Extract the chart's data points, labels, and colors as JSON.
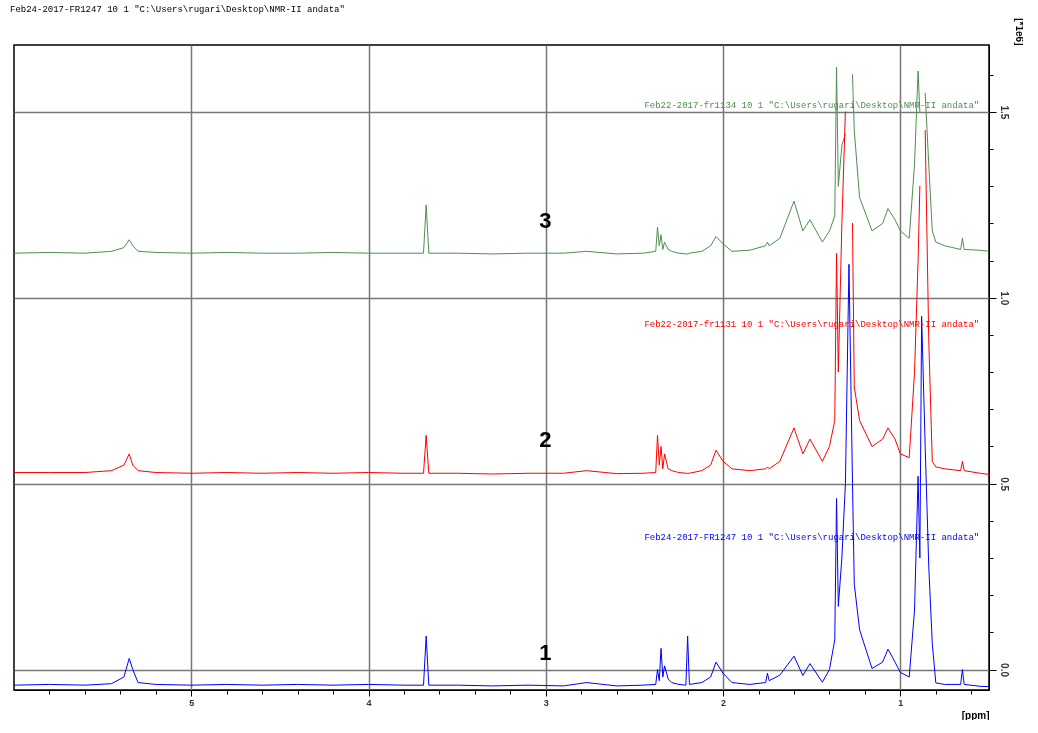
{
  "chart_data": {
    "type": "line",
    "title": "Feb24-2017-FR1247  10  1  \"C:\\Users\\rugari\\Desktop\\NMR-II andata\"",
    "xlabel": "[ppm]",
    "ylabel": "[*1e6]",
    "x": [
      6.0,
      5.8,
      5.6,
      5.45,
      5.38,
      5.35,
      5.33,
      5.3,
      5.2,
      5.0,
      4.8,
      4.6,
      4.4,
      4.2,
      4.0,
      3.8,
      3.69,
      3.675,
      3.66,
      3.5,
      3.3,
      3.1,
      2.9,
      2.77,
      2.6,
      2.45,
      2.38,
      2.37,
      2.36,
      2.35,
      2.34,
      2.33,
      2.31,
      2.29,
      2.25,
      2.21,
      2.2,
      2.19,
      2.12,
      2.07,
      2.04,
      2.0,
      1.95,
      1.85,
      1.76,
      1.75,
      1.74,
      1.68,
      1.6,
      1.55,
      1.51,
      1.44,
      1.4,
      1.37,
      1.36,
      1.35,
      1.33,
      1.31,
      1.29,
      1.27,
      1.26,
      1.23,
      1.16,
      1.1,
      1.07,
      1.03,
      1.0,
      0.95,
      0.92,
      0.9,
      0.89,
      0.88,
      0.86,
      0.84,
      0.82,
      0.8,
      0.75,
      0.66,
      0.65,
      0.64,
      0.55,
      0.5
    ],
    "series": [
      {
        "name": "Feb22-2017-fr1134  10  1  \"C:\\Users\\rugari\\Desktop\\NMR-II andata\"",
        "color": "#4f8f4f",
        "values": [
          1.12,
          1.122,
          1.12,
          1.125,
          1.135,
          1.156,
          1.14,
          1.125,
          1.122,
          1.12,
          1.122,
          1.12,
          1.12,
          1.122,
          1.12,
          1.12,
          1.12,
          1.25,
          1.12,
          1.12,
          1.118,
          1.12,
          1.12,
          1.125,
          1.118,
          1.12,
          1.125,
          1.19,
          1.14,
          1.17,
          1.13,
          1.15,
          1.13,
          1.125,
          1.12,
          1.118,
          1.118,
          1.12,
          1.125,
          1.14,
          1.165,
          1.145,
          1.125,
          1.128,
          1.14,
          1.15,
          1.14,
          1.16,
          1.26,
          1.18,
          1.21,
          1.15,
          1.18,
          1.22,
          1.62,
          1.3,
          1.41,
          1.44,
          null,
          1.6,
          1.45,
          1.27,
          1.18,
          1.2,
          1.24,
          1.21,
          1.18,
          1.16,
          1.36,
          1.61,
          1.5,
          null,
          1.55,
          1.36,
          1.18,
          1.15,
          1.14,
          1.13,
          1.16,
          1.13,
          1.128,
          1.125
        ]
      },
      {
        "name": "Feb22-2017-fr1131  10  1  \"C:\\Users\\rugari\\Desktop\\NMR-II andata\"",
        "color": "#ff0000",
        "values": [
          0.53,
          0.53,
          0.53,
          0.535,
          0.55,
          0.58,
          0.55,
          0.535,
          0.53,
          0.528,
          0.53,
          0.528,
          0.53,
          0.528,
          0.53,
          0.528,
          0.528,
          0.63,
          0.528,
          0.528,
          0.526,
          0.528,
          0.528,
          0.535,
          0.527,
          0.528,
          0.53,
          0.63,
          0.55,
          0.6,
          0.54,
          0.58,
          0.54,
          0.535,
          0.53,
          0.528,
          0.528,
          0.528,
          0.535,
          0.55,
          0.59,
          0.56,
          0.54,
          0.535,
          0.54,
          0.545,
          0.54,
          0.56,
          0.65,
          0.58,
          0.62,
          0.56,
          0.6,
          0.67,
          1.12,
          0.8,
          1.2,
          1.5,
          null,
          1.2,
          0.76,
          0.67,
          0.6,
          0.62,
          0.65,
          0.62,
          0.58,
          0.57,
          0.8,
          1.1,
          1.3,
          null,
          1.45,
          0.89,
          0.56,
          0.545,
          0.54,
          0.535,
          0.56,
          0.535,
          0.528,
          0.525
        ]
      },
      {
        "name": "Feb24-2017-FR1247  10  1  \"C:\\Users\\rugari\\Desktop\\NMR-II andata\"",
        "color": "#0000ff",
        "values": [
          -0.042,
          -0.04,
          -0.042,
          -0.038,
          -0.02,
          0.03,
          0.0,
          -0.035,
          -0.04,
          -0.042,
          -0.04,
          -0.042,
          -0.04,
          -0.042,
          -0.04,
          -0.042,
          -0.042,
          0.09,
          -0.042,
          -0.042,
          -0.044,
          -0.042,
          -0.044,
          -0.035,
          -0.044,
          -0.042,
          -0.04,
          0.0,
          -0.03,
          0.057,
          -0.02,
          0.01,
          -0.025,
          -0.035,
          -0.04,
          -0.042,
          0.09,
          -0.04,
          -0.035,
          -0.02,
          0.02,
          -0.01,
          -0.035,
          -0.04,
          -0.035,
          -0.01,
          -0.03,
          -0.015,
          0.036,
          -0.016,
          0.016,
          -0.034,
          0.0,
          0.08,
          0.46,
          0.17,
          0.3,
          0.5,
          1.09,
          0.5,
          0.23,
          0.107,
          0.003,
          0.02,
          0.055,
          0.02,
          -0.008,
          -0.02,
          0.16,
          0.52,
          0.3,
          0.95,
          0.6,
          0.28,
          0.07,
          -0.036,
          -0.04,
          -0.04,
          0.0,
          -0.04,
          -0.045,
          -0.046
        ]
      }
    ],
    "xlim": [
      6.0,
      0.5
    ],
    "xticks": [
      5,
      4,
      3,
      2,
      1,
      {
        "value": 5.8,
        "label": null
      },
      {
        "value": 5.6,
        "label": null
      },
      {
        "value": 5.4,
        "label": null
      },
      {
        "value": 5.2,
        "label": null
      },
      {
        "value": 4.8,
        "label": null
      },
      {
        "value": 4.6,
        "label": null
      },
      {
        "value": 4.4,
        "label": null
      },
      {
        "value": 4.2,
        "label": null
      },
      {
        "value": 3.8,
        "label": null
      },
      {
        "value": 3.6,
        "label": null
      },
      {
        "value": 3.4,
        "label": null
      },
      {
        "value": 3.2,
        "label": null
      },
      {
        "value": 2.8,
        "label": null
      },
      {
        "value": 2.6,
        "label": null
      },
      {
        "value": 2.4,
        "label": null
      },
      {
        "value": 2.2,
        "label": null
      },
      {
        "value": 1.8,
        "label": null
      },
      {
        "value": 1.6,
        "label": null
      },
      {
        "value": 1.4,
        "label": null
      },
      {
        "value": 1.2,
        "label": null
      },
      {
        "value": 0.8,
        "label": null
      },
      {
        "value": 0.6,
        "label": null
      }
    ],
    "ylim": [
      -0.055,
      1.68
    ],
    "yticks": [
      {
        "value": 0,
        "label": "0.0"
      },
      {
        "value": 0.5,
        "label": "0.5"
      },
      {
        "value": 1,
        "label": "1.0"
      },
      {
        "value": 1.5,
        "label": "1.5"
      },
      {
        "value": 0.1,
        "label": null
      },
      {
        "value": 0.2,
        "label": null
      },
      {
        "value": 0.3,
        "label": null
      },
      {
        "value": 0.4,
        "label": null
      },
      {
        "value": 0.6,
        "label": null
      },
      {
        "value": 0.7,
        "label": null
      },
      {
        "value": 0.8,
        "label": null
      },
      {
        "value": 0.9,
        "label": null
      },
      {
        "value": 1.1,
        "label": null
      },
      {
        "value": 1.2,
        "label": null
      },
      {
        "value": 1.3,
        "label": null
      },
      {
        "value": 1.4,
        "label": null
      },
      {
        "value": 1.6,
        "label": null
      }
    ],
    "grid": true,
    "line_style": "solid",
    "marker": "none",
    "annotations": [
      "3",
      "2",
      "1"
    ]
  }
}
